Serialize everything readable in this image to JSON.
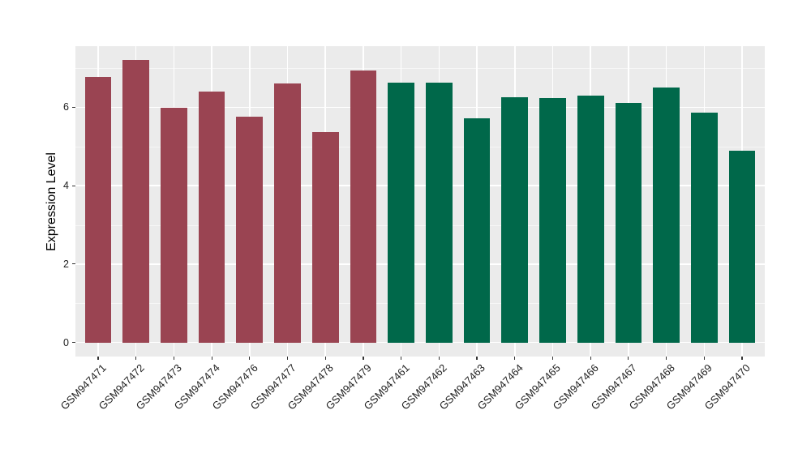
{
  "chart_data": {
    "type": "bar",
    "title": "",
    "xlabel": "",
    "ylabel": "Expression Level",
    "categories": [
      "GSM947471",
      "GSM947472",
      "GSM947473",
      "GSM947474",
      "GSM947476",
      "GSM947477",
      "GSM947478",
      "GSM947479",
      "GSM947461",
      "GSM947462",
      "GSM947463",
      "GSM947464",
      "GSM947465",
      "GSM947466",
      "GSM947467",
      "GSM947468",
      "GSM947469",
      "GSM947470"
    ],
    "values": [
      6.78,
      7.21,
      5.98,
      6.4,
      5.77,
      6.6,
      5.36,
      6.93,
      6.62,
      6.62,
      5.71,
      6.25,
      6.23,
      6.29,
      6.11,
      6.5,
      5.86,
      4.9
    ],
    "groups": [
      "group1",
      "group1",
      "group1",
      "group1",
      "group1",
      "group1",
      "group1",
      "group1",
      "group2",
      "group2",
      "group2",
      "group2",
      "group2",
      "group2",
      "group2",
      "group2",
      "group2",
      "group2"
    ],
    "group_colors": {
      "group1": "#9A4452",
      "group2": "#00684A"
    },
    "ytick_labels": [
      "0",
      "2",
      "4",
      "6"
    ],
    "yticks": [
      0,
      2,
      4,
      6
    ],
    "yticks_minor": [
      1,
      3,
      5,
      7
    ],
    "ylim": [
      -0.36,
      7.56
    ],
    "grid": "major-and-minor-horizontal, major-vertical-at-categories",
    "legend": "none",
    "panel_background": "#EBEBEB",
    "gridline_color": "#FFFFFF",
    "tick_color": "#333333",
    "axis_text_color": "#1F1F1F",
    "axis_title_color": "#000000"
  }
}
